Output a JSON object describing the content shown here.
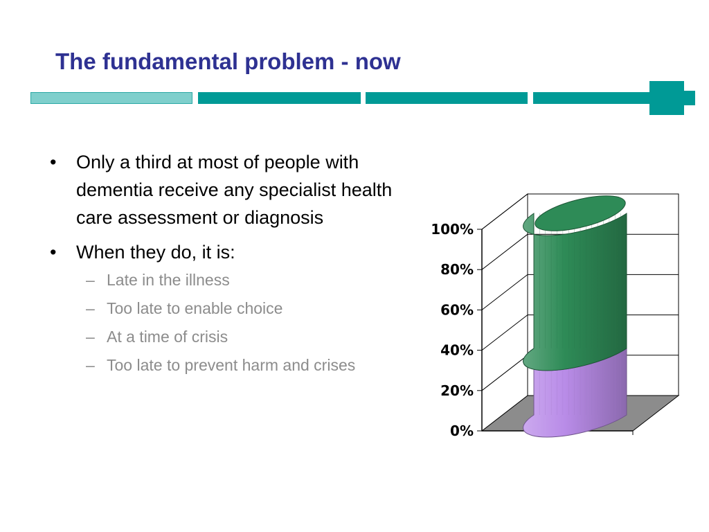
{
  "slide": {
    "title": "The fundamental problem - now",
    "colors": {
      "title": "#2E3192",
      "accent": "#009A96",
      "accent_light": "#7FCFCC",
      "sub_bullet_text": "#8C8C8C"
    }
  },
  "bullets": [
    {
      "text": "Only a third at most of people with dementia receive any specialist health care assessment or diagnosis"
    },
    {
      "text": "When they do, it is:",
      "sub": [
        "Late in the illness",
        "Too late to enable choice",
        "At a time of crisis",
        "Too late to prevent harm and crises"
      ]
    }
  ],
  "chart_data": {
    "type": "bar",
    "stacked": true,
    "style": "3d-cylinder",
    "categories": [
      ""
    ],
    "series": [
      {
        "values": [
          33
        ],
        "color": "#B98CE8"
      },
      {
        "values": [
          67
        ],
        "color": "#2E8B57"
      }
    ],
    "ylim": [
      0,
      100
    ],
    "yticks": [
      "0%",
      "20%",
      "40%",
      "60%",
      "80%",
      "100%"
    ],
    "grid": true,
    "legend": "none"
  }
}
